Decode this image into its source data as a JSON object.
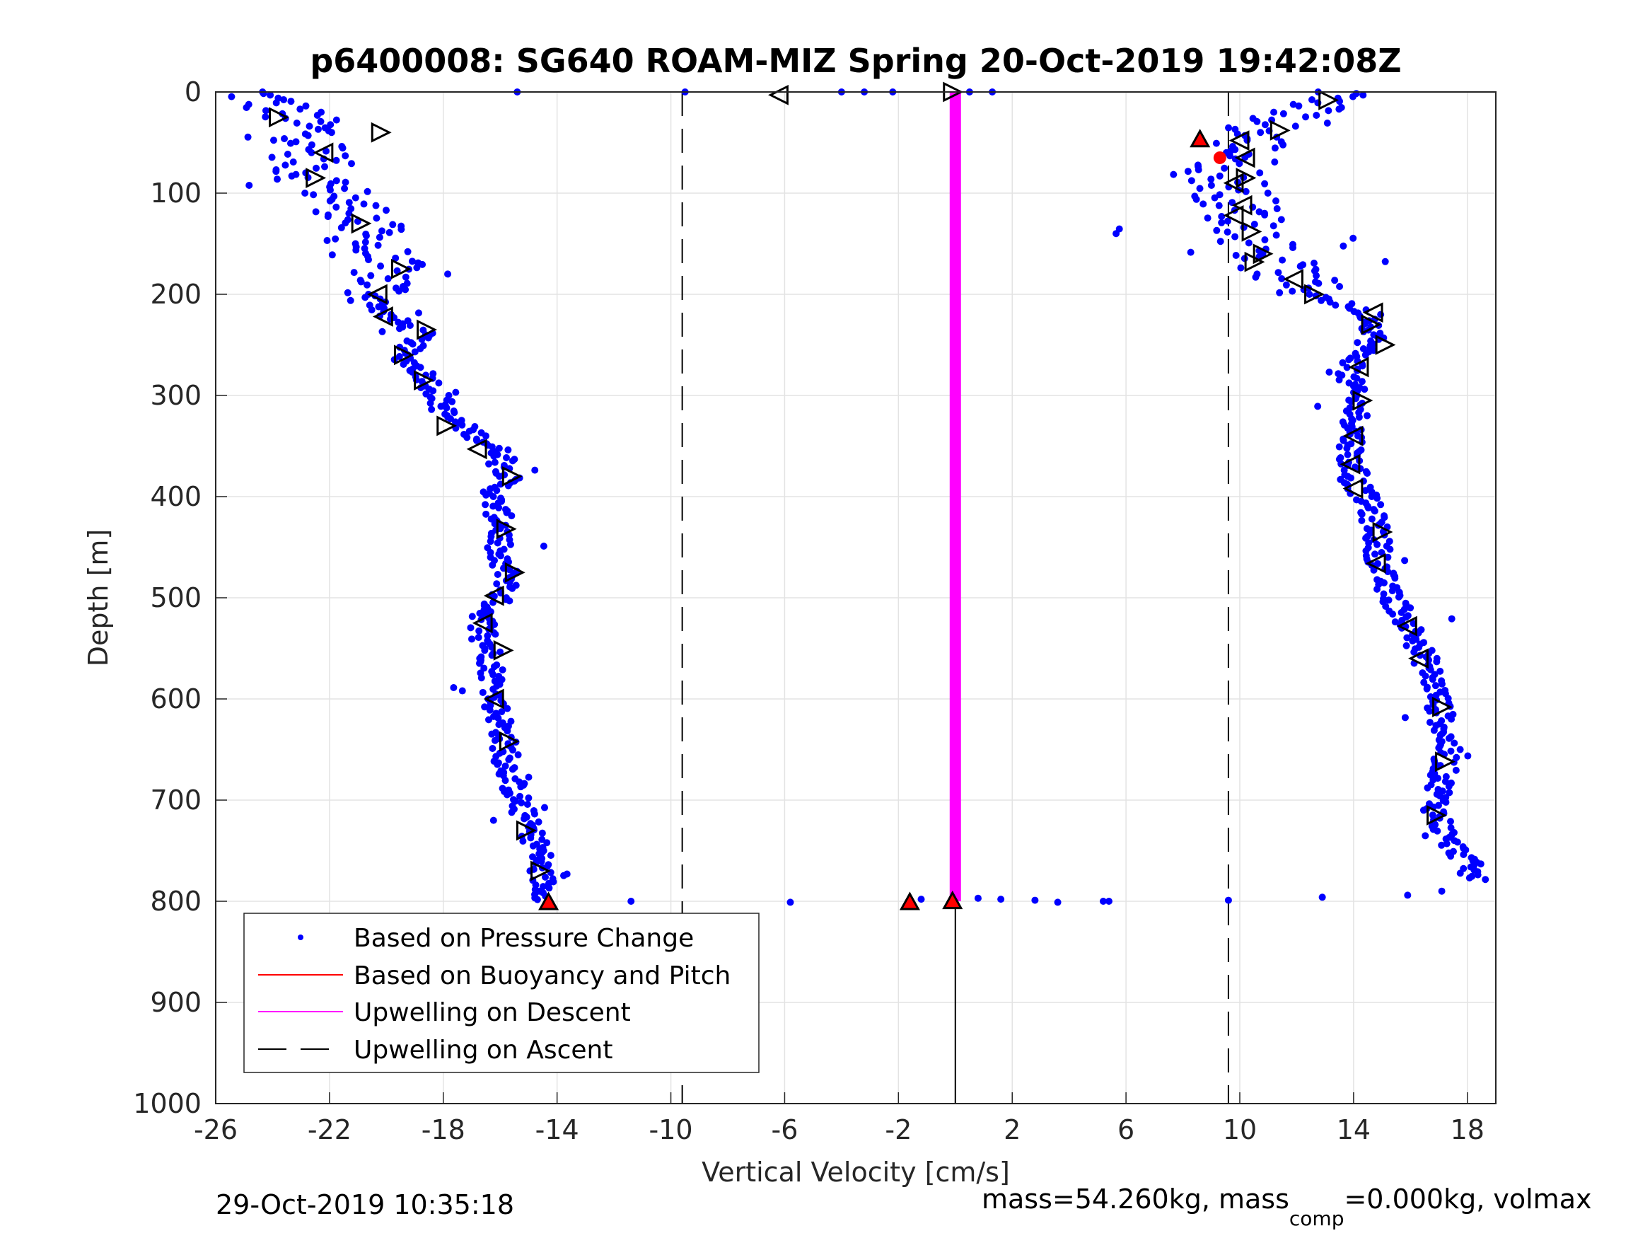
{
  "chart_data": {
    "type": "scatter",
    "title": "p6400008: SG640 ROAM-MIZ Spring 20-Oct-2019 19:42:08Z",
    "xlabel": "Vertical Velocity [cm/s]",
    "ylabel": "Depth [m]",
    "xlim": [
      -26,
      19
    ],
    "ylim": [
      0,
      1000
    ],
    "y_reversed": true,
    "grid": true,
    "x_ticks": [
      -26,
      -22,
      -18,
      -14,
      -10,
      -6,
      -2,
      2,
      6,
      10,
      14,
      18
    ],
    "x_tick_labels": [
      "-26",
      "-22",
      "-18",
      "-14",
      "-10",
      "-6",
      "-2",
      "2",
      "6",
      "10",
      "14",
      "18"
    ],
    "y_ticks": [
      0,
      100,
      200,
      300,
      400,
      500,
      600,
      700,
      800,
      900,
      1000
    ],
    "y_tick_labels": [
      "0",
      "100",
      "200",
      "300",
      "400",
      "500",
      "600",
      "700",
      "800",
      "900",
      "1000"
    ],
    "legend_position": "bottom-left",
    "legend": [
      {
        "label": "Based on Pressure Change",
        "style": "dot",
        "color": "#0000ff"
      },
      {
        "label": "Based on Buoyancy and Pitch",
        "style": "line",
        "color": "#ff0000"
      },
      {
        "label": "Upwelling on Descent",
        "style": "line",
        "color": "#ff00ff"
      },
      {
        "label": "Upwelling on Ascent",
        "style": "dashed",
        "color": "#000000"
      }
    ],
    "series": [
      {
        "name": "Based on Pressure Change",
        "color": "#0000ff",
        "descent_profile": [
          [
            -24.8,
            0
          ],
          [
            -23.5,
            20
          ],
          [
            -22.5,
            40
          ],
          [
            -22.6,
            60
          ],
          [
            -22.7,
            80
          ],
          [
            -21.8,
            100
          ],
          [
            -21.0,
            120
          ],
          [
            -20.7,
            150
          ],
          [
            -19.9,
            180
          ],
          [
            -20.4,
            200
          ],
          [
            -20.1,
            220
          ],
          [
            -18.7,
            240
          ],
          [
            -19.5,
            260
          ],
          [
            -18.6,
            280
          ],
          [
            -18.2,
            300
          ],
          [
            -17.9,
            320
          ],
          [
            -16.8,
            340
          ],
          [
            -15.8,
            360
          ],
          [
            -15.7,
            380
          ],
          [
            -16.3,
            400
          ],
          [
            -15.9,
            430
          ],
          [
            -16.2,
            460
          ],
          [
            -15.6,
            480
          ],
          [
            -16.0,
            500
          ],
          [
            -16.6,
            520
          ],
          [
            -16.3,
            560
          ],
          [
            -16.2,
            600
          ],
          [
            -15.9,
            630
          ],
          [
            -15.8,
            660
          ],
          [
            -15.5,
            690
          ],
          [
            -15.1,
            720
          ],
          [
            -14.6,
            750
          ],
          [
            -14.6,
            770
          ],
          [
            -14.4,
            790
          ],
          [
            -14.3,
            800
          ]
        ],
        "ascent_profile": [
          [
            14.0,
            0
          ],
          [
            11.8,
            20
          ],
          [
            10.5,
            40
          ],
          [
            10.3,
            60
          ],
          [
            9.5,
            80
          ],
          [
            9.8,
            100
          ],
          [
            10.1,
            120
          ],
          [
            10.6,
            140
          ],
          [
            10.9,
            160
          ],
          [
            11.6,
            180
          ],
          [
            12.6,
            200
          ],
          [
            14.6,
            220
          ],
          [
            14.8,
            240
          ],
          [
            14.2,
            260
          ],
          [
            13.8,
            280
          ],
          [
            14.0,
            300
          ],
          [
            14.1,
            320
          ],
          [
            14.0,
            340
          ],
          [
            13.9,
            360
          ],
          [
            13.9,
            380
          ],
          [
            14.4,
            400
          ],
          [
            14.8,
            430
          ],
          [
            14.9,
            460
          ],
          [
            15.1,
            490
          ],
          [
            15.6,
            510
          ],
          [
            16.0,
            530
          ],
          [
            16.5,
            560
          ],
          [
            16.9,
            590
          ],
          [
            17.1,
            620
          ],
          [
            17.3,
            650
          ],
          [
            17.1,
            680
          ],
          [
            16.9,
            710
          ],
          [
            17.3,
            740
          ],
          [
            18.0,
            760
          ],
          [
            18.2,
            780
          ]
        ],
        "surface_points": [
          [
            -15.4,
            0
          ],
          [
            -9.5,
            0
          ],
          [
            -4.0,
            0
          ],
          [
            -3.2,
            0
          ],
          [
            -2.2,
            0
          ],
          [
            0.5,
            0
          ],
          [
            1.3,
            0
          ]
        ],
        "bottom_points": [
          [
            -11.4,
            800
          ],
          [
            -5.8,
            801
          ],
          [
            -1.2,
            798
          ],
          [
            0.8,
            797
          ],
          [
            1.6,
            798
          ],
          [
            2.8,
            799
          ],
          [
            3.6,
            801
          ],
          [
            5.2,
            800
          ],
          [
            5.4,
            800
          ],
          [
            9.6,
            799
          ],
          [
            12.9,
            796
          ],
          [
            15.9,
            794
          ],
          [
            17.1,
            790
          ]
        ]
      },
      {
        "name": "Upwelling on Descent",
        "color": "#ff00ff",
        "x": 0.0,
        "y_range": [
          0,
          800
        ]
      },
      {
        "name": "Upwelling on Ascent",
        "color": "#000000",
        "dashed_x": [
          -9.6,
          9.6
        ]
      }
    ],
    "vertical_line": {
      "x": 0.0,
      "y_range": [
        800,
        1000
      ],
      "color": "#000000"
    },
    "triangles_right": [
      [
        -23.8,
        25
      ],
      [
        -20.2,
        40
      ],
      [
        -22.5,
        85
      ],
      [
        -20.9,
        130
      ],
      [
        -19.5,
        175
      ],
      [
        -18.6,
        235
      ],
      [
        -19.4,
        260
      ],
      [
        -18.7,
        285
      ],
      [
        -17.9,
        330
      ],
      [
        -15.6,
        380
      ],
      [
        -15.8,
        432
      ],
      [
        -15.5,
        475
      ],
      [
        -15.9,
        552
      ],
      [
        -15.7,
        642
      ],
      [
        -15.1,
        730
      ],
      [
        -14.6,
        770
      ],
      [
        13.1,
        8
      ],
      [
        11.4,
        38
      ],
      [
        10.2,
        85
      ],
      [
        10.4,
        138
      ],
      [
        10.8,
        160
      ],
      [
        10.5,
        168
      ],
      [
        12.6,
        200
      ],
      [
        14.6,
        230
      ],
      [
        15.1,
        250
      ],
      [
        14.3,
        305
      ],
      [
        15.0,
        435
      ],
      [
        17.1,
        608
      ],
      [
        17.2,
        662
      ],
      [
        16.9,
        715
      ],
      [
        -0.1,
        0
      ]
    ],
    "triangles_left": [
      [
        -6.2,
        3
      ],
      [
        -16.8,
        353
      ],
      [
        -16.6,
        525
      ],
      [
        -16.2,
        600
      ],
      [
        -20.3,
        200
      ],
      [
        -20.1,
        222
      ],
      [
        -22.2,
        60
      ],
      [
        10.0,
        48
      ],
      [
        10.2,
        65
      ],
      [
        9.8,
        90
      ],
      [
        10.1,
        112
      ],
      [
        9.8,
        122
      ],
      [
        11.9,
        185
      ],
      [
        14.7,
        218
      ],
      [
        14.2,
        272
      ],
      [
        14.0,
        340
      ],
      [
        13.9,
        368
      ],
      [
        14.0,
        392
      ],
      [
        14.8,
        466
      ],
      [
        15.9,
        528
      ],
      [
        16.3,
        560
      ],
      [
        -16.2,
        498
      ]
    ],
    "triangles_up_red": [
      [
        8.6,
        47
      ],
      [
        -14.3,
        801
      ],
      [
        -1.6,
        801
      ],
      [
        -0.1,
        800
      ]
    ],
    "red_dots": [
      [
        9.3,
        65
      ]
    ]
  },
  "footer": {
    "timestamp": "29-Oct-2019 10:35:18",
    "mass_prefix": "mass=54.260kg, mass",
    "mass_sub": "comp",
    "mass_suffix": "=0.000kg, volmax"
  }
}
